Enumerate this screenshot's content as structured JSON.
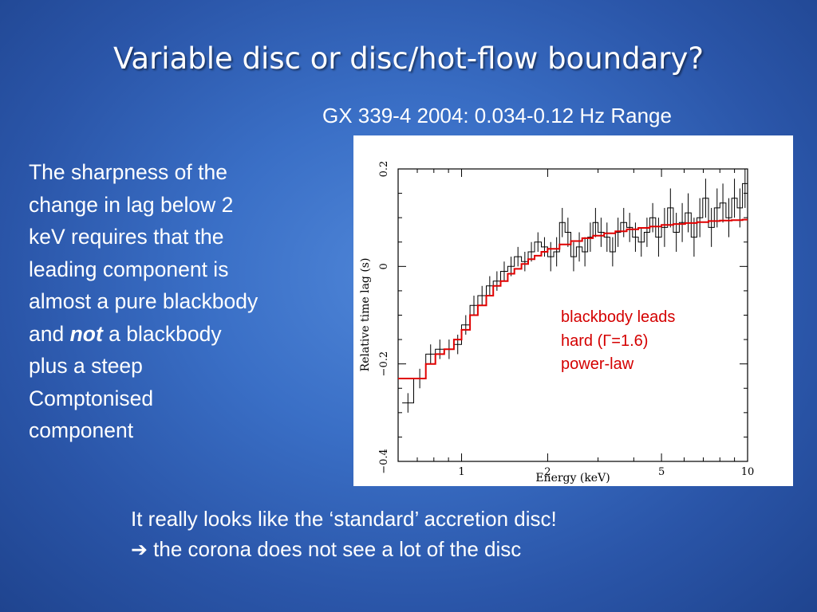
{
  "slide": {
    "title": "Variable disc or disc/hot-flow boundary?",
    "subtitle": "GX 339-4 2004: 0.034-0.12 Hz Range",
    "body": {
      "line1": "The sharpness of the",
      "line2": "change in lag below 2",
      "line3": "keV requires that the",
      "line4": "leading component is",
      "line5": "almost a pure blackbody",
      "line6_pre": "and ",
      "line6_em": "not",
      "line6_post": " a blackbody",
      "line7": "plus a steep",
      "line8": "Comptonised",
      "line9": "component"
    },
    "annotation": {
      "line1": "blackbody leads",
      "line2": "hard (Γ=1.6)",
      "line3": "power-law"
    },
    "bottom": {
      "line1": "It really looks like the ‘standard’ accretion disc!",
      "arrow": "➔",
      "line2": " the corona does not see a lot of the disc"
    },
    "colors": {
      "model_line": "#e00000",
      "data_line": "#000000",
      "annotation": "#d40000"
    }
  },
  "chart_data": {
    "type": "line",
    "title": "",
    "xlabel": "Energy (keV)",
    "ylabel": "Relative time lag (s)",
    "xscale": "log",
    "xlim": [
      0.6,
      10
    ],
    "ylim": [
      -0.4,
      0.2
    ],
    "xticks": [
      1,
      2,
      5,
      10
    ],
    "yticks": [
      -0.4,
      -0.2,
      0,
      0.2
    ],
    "xtick_labels": [
      "1",
      "2",
      "5",
      "10"
    ],
    "ytick_labels": [
      "−0.4",
      "−0.2",
      "0",
      "0.2"
    ],
    "series": [
      {
        "style": "step-with-errorbars",
        "color": "#000000",
        "edges": [
          0.62,
          0.68,
          0.75,
          0.81,
          0.87,
          0.94,
          1.0,
          1.07,
          1.14,
          1.22,
          1.29,
          1.37,
          1.45,
          1.53,
          1.62,
          1.71,
          1.8,
          1.9,
          2.0,
          2.1,
          2.2,
          2.3,
          2.41,
          2.52,
          2.64,
          2.76,
          2.88,
          3.0,
          3.15,
          3.3,
          3.45,
          3.6,
          3.78,
          3.96,
          4.15,
          4.35,
          4.55,
          4.77,
          5.0,
          5.25,
          5.5,
          5.77,
          6.05,
          6.35,
          6.65,
          6.97,
          7.3,
          7.65,
          8.0,
          8.4,
          8.8,
          9.2,
          9.6,
          10.0
        ],
        "values": [
          -0.28,
          -0.23,
          -0.18,
          -0.17,
          -0.17,
          -0.16,
          -0.12,
          -0.08,
          -0.06,
          -0.04,
          -0.03,
          -0.01,
          0.0,
          0.02,
          0.01,
          0.03,
          0.05,
          0.04,
          0.02,
          0.03,
          0.09,
          0.07,
          0.02,
          0.04,
          0.03,
          0.06,
          0.09,
          0.07,
          0.06,
          0.03,
          0.07,
          0.09,
          0.08,
          0.06,
          0.05,
          0.07,
          0.1,
          0.06,
          0.08,
          0.12,
          0.07,
          0.09,
          0.11,
          0.06,
          0.1,
          0.14,
          0.08,
          0.12,
          0.13,
          0.1,
          0.14,
          0.12,
          0.17
        ],
        "errors": [
          0.02,
          0.02,
          0.02,
          0.02,
          0.02,
          0.02,
          0.02,
          0.02,
          0.02,
          0.02,
          0.02,
          0.02,
          0.02,
          0.02,
          0.02,
          0.02,
          0.02,
          0.02,
          0.03,
          0.03,
          0.03,
          0.03,
          0.03,
          0.03,
          0.03,
          0.03,
          0.03,
          0.03,
          0.03,
          0.03,
          0.03,
          0.03,
          0.03,
          0.03,
          0.03,
          0.03,
          0.03,
          0.04,
          0.04,
          0.04,
          0.04,
          0.04,
          0.04,
          0.04,
          0.04,
          0.04,
          0.04,
          0.04,
          0.04,
          0.04,
          0.04,
          0.04,
          0.05
        ]
      },
      {
        "style": "model-step",
        "color": "#e00000",
        "edges": [
          0.6,
          0.68,
          0.75,
          0.81,
          0.87,
          0.94,
          1.0,
          1.07,
          1.14,
          1.22,
          1.29,
          1.37,
          1.45,
          1.53,
          1.62,
          1.71,
          1.8,
          1.9,
          2.0,
          2.2,
          2.41,
          2.64,
          2.88,
          3.15,
          3.45,
          3.78,
          4.15,
          4.55,
          5.0,
          5.5,
          6.05,
          6.65,
          7.3,
          8.0,
          8.8,
          9.6,
          10.0
        ],
        "values": [
          -0.23,
          -0.23,
          -0.2,
          -0.18,
          -0.17,
          -0.15,
          -0.13,
          -0.1,
          -0.08,
          -0.06,
          -0.04,
          -0.03,
          -0.015,
          -0.005,
          0.005,
          0.015,
          0.022,
          0.03,
          0.036,
          0.045,
          0.052,
          0.058,
          0.063,
          0.068,
          0.072,
          0.076,
          0.079,
          0.082,
          0.085,
          0.087,
          0.089,
          0.091,
          0.093,
          0.094,
          0.095,
          0.096
        ]
      }
    ]
  }
}
